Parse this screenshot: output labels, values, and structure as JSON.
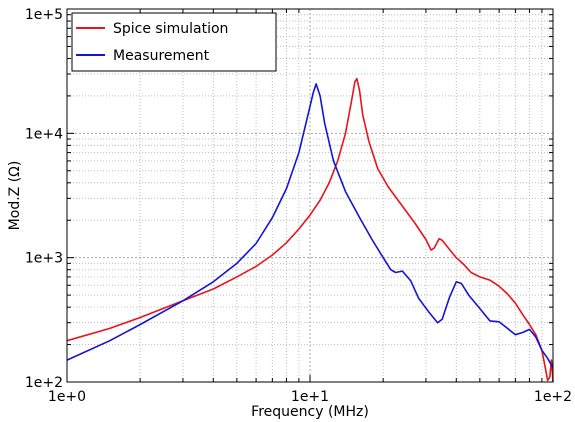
{
  "chart_data": {
    "type": "line",
    "xlabel": "Frequency (MHz)",
    "ylabel": "Mod.Z (Ω)",
    "xscale": "log",
    "yscale": "log",
    "xlim": [
      1,
      100
    ],
    "ylim": [
      100,
      100000
    ],
    "grid": true,
    "legend_position": "top-left",
    "x_ticks": [
      {
        "value": 1,
        "label": "1e+0"
      },
      {
        "value": 10,
        "label": "1e+1"
      },
      {
        "value": 100,
        "label": "1e+2"
      }
    ],
    "y_ticks": [
      {
        "value": 100,
        "label": "1e+2"
      },
      {
        "value": 1000,
        "label": "1e+3"
      },
      {
        "value": 10000,
        "label": "1e+4"
      },
      {
        "value": 100000,
        "label": "1e+5"
      }
    ],
    "series": [
      {
        "name": "Spice simulation",
        "color": "#e8141c",
        "points": [
          [
            1.0,
            215
          ],
          [
            1.5,
            270
          ],
          [
            2.0,
            330
          ],
          [
            3.0,
            450
          ],
          [
            4.0,
            560
          ],
          [
            5.0,
            700
          ],
          [
            6.0,
            850
          ],
          [
            7.0,
            1050
          ],
          [
            8.0,
            1320
          ],
          [
            9.0,
            1700
          ],
          [
            10.0,
            2200
          ],
          [
            11.0,
            2900
          ],
          [
            12.0,
            4000
          ],
          [
            13.0,
            6000
          ],
          [
            14.0,
            10000
          ],
          [
            14.8,
            18000
          ],
          [
            15.3,
            26000
          ],
          [
            15.6,
            27500
          ],
          [
            16.0,
            22000
          ],
          [
            16.5,
            14000
          ],
          [
            17.5,
            8500
          ],
          [
            19.0,
            5200
          ],
          [
            21.0,
            3700
          ],
          [
            24.0,
            2600
          ],
          [
            27.0,
            1900
          ],
          [
            30.0,
            1400
          ],
          [
            31.5,
            1150
          ],
          [
            32.5,
            1200
          ],
          [
            34.0,
            1420
          ],
          [
            35.0,
            1380
          ],
          [
            37.0,
            1200
          ],
          [
            40.0,
            1000
          ],
          [
            43.0,
            880
          ],
          [
            46.0,
            760
          ],
          [
            50.0,
            700
          ],
          [
            55.0,
            660
          ],
          [
            60.0,
            590
          ],
          [
            65.0,
            510
          ],
          [
            70.0,
            430
          ],
          [
            75.0,
            350
          ],
          [
            80.0,
            290
          ],
          [
            85.0,
            240
          ],
          [
            90.0,
            180
          ],
          [
            93.0,
            130
          ],
          [
            95.0,
            103
          ],
          [
            97.0,
            110
          ],
          [
            98.5,
            150
          ],
          [
            100.0,
            100
          ]
        ]
      },
      {
        "name": "Measurement",
        "color": "#1414d4",
        "points": [
          [
            1.0,
            150
          ],
          [
            1.5,
            215
          ],
          [
            2.0,
            290
          ],
          [
            3.0,
            450
          ],
          [
            4.0,
            640
          ],
          [
            5.0,
            900
          ],
          [
            6.0,
            1300
          ],
          [
            7.0,
            2100
          ],
          [
            8.0,
            3600
          ],
          [
            9.0,
            7000
          ],
          [
            9.8,
            14000
          ],
          [
            10.3,
            21000
          ],
          [
            10.6,
            25000
          ],
          [
            11.0,
            20000
          ],
          [
            11.5,
            12000
          ],
          [
            12.5,
            6000
          ],
          [
            14.0,
            3400
          ],
          [
            16.0,
            2100
          ],
          [
            18.0,
            1400
          ],
          [
            20.0,
            1000
          ],
          [
            21.5,
            800
          ],
          [
            22.5,
            760
          ],
          [
            24.0,
            780
          ],
          [
            26.0,
            650
          ],
          [
            28.0,
            470
          ],
          [
            31.0,
            360
          ],
          [
            33.5,
            300
          ],
          [
            35.0,
            320
          ],
          [
            37.5,
            480
          ],
          [
            40.0,
            640
          ],
          [
            42.0,
            620
          ],
          [
            45.0,
            500
          ],
          [
            50.0,
            390
          ],
          [
            55.0,
            310
          ],
          [
            60.0,
            305
          ],
          [
            65.0,
            270
          ],
          [
            70.0,
            240
          ],
          [
            75.0,
            250
          ],
          [
            80.0,
            265
          ],
          [
            85.0,
            230
          ],
          [
            90.0,
            180
          ],
          [
            95.0,
            155
          ],
          [
            100.0,
            130
          ]
        ]
      }
    ]
  }
}
